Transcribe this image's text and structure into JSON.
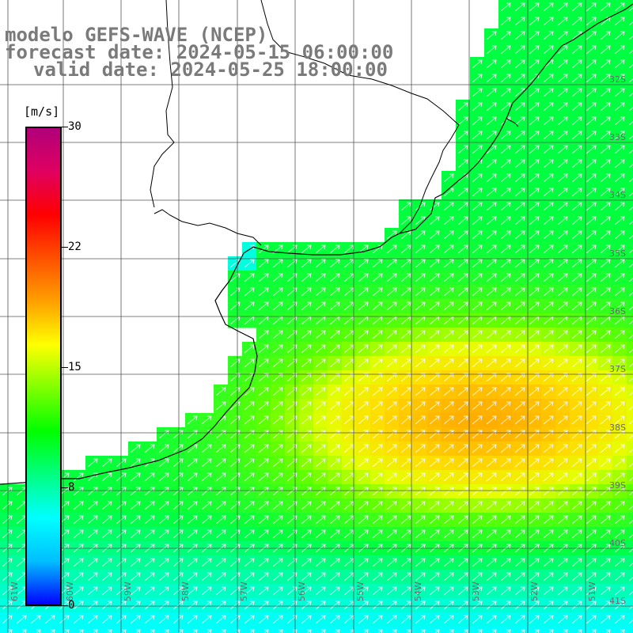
{
  "title": {
    "line1": "modelo GEFS-WAVE (NCEP)",
    "line2": "forecast date: 2024-05-15 06:00:00",
    "line3": "valid date: 2024-05-25 18:00:00"
  },
  "colorbar": {
    "unit": "[m/s]",
    "ticks": [
      "30",
      "22",
      "15",
      "8",
      "0"
    ],
    "colors": [
      "#0000ff",
      "#00bfff",
      "#00ffff",
      "#00ff80",
      "#00ff00",
      "#80ff00",
      "#ffff00",
      "#ffa000",
      "#ff5000",
      "#ff0000",
      "#e00060",
      "#b0007a"
    ]
  },
  "grid": {
    "lon_labels": [
      "61W",
      "60W",
      "59W",
      "58W",
      "57W",
      "56W",
      "55W",
      "54W",
      "53W",
      "52W",
      "51W"
    ],
    "lat_labels": [
      "32S",
      "33S",
      "34S",
      "35S",
      "36S",
      "37S",
      "38S",
      "39S",
      "40S",
      "41S"
    ]
  },
  "field": {
    "variable": "wind speed",
    "units": "m/s",
    "arrow_direction": "toward north-east",
    "max_region": "approx. 20 m/s near 38S 53W"
  }
}
